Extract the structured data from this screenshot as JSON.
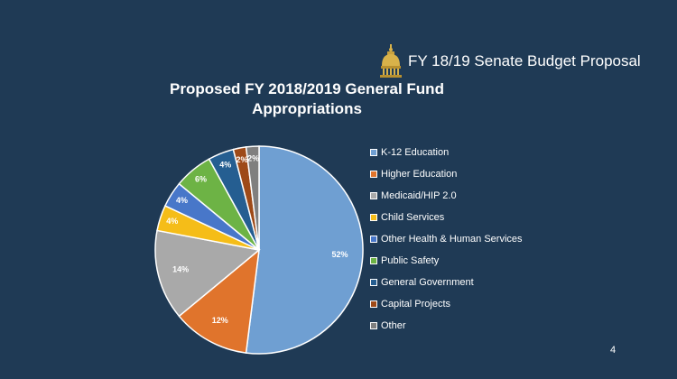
{
  "header": {
    "text": "FY 18/19 Senate Budget Proposal",
    "icon": "capitol-dome-icon"
  },
  "page_number": "4",
  "colors": {
    "background": "#1f3a55",
    "text": "#ffffff"
  },
  "chart_data": {
    "type": "pie",
    "title": "Proposed FY 2018/2019 General Fund Appropriations",
    "legend_position": "right",
    "slices": [
      {
        "label": "K-12 Education",
        "value": 52,
        "data_label": "52%",
        "color": "#6f9fd2"
      },
      {
        "label": "Higher Education",
        "value": 12,
        "data_label": "12%",
        "color": "#e0742c"
      },
      {
        "label": "Medicaid/HIP 2.0",
        "value": 14,
        "data_label": "14%",
        "color": "#a9a9a9"
      },
      {
        "label": "Child Services",
        "value": 4,
        "data_label": "4%",
        "color": "#f5bd18"
      },
      {
        "label": "Other Health & Human Services",
        "value": 4,
        "data_label": "4%",
        "color": "#4877c9"
      },
      {
        "label": "Public Safety",
        "value": 6,
        "data_label": "6%",
        "color": "#6db345"
      },
      {
        "label": "General Government",
        "value": 4,
        "data_label": "4%",
        "color": "#255e91"
      },
      {
        "label": "Capital Projects",
        "value": 2,
        "data_label": "2%",
        "color": "#9e4a18"
      },
      {
        "label": "Other",
        "value": 2,
        "data_label": "2%",
        "color": "#7f7f7f"
      }
    ]
  }
}
